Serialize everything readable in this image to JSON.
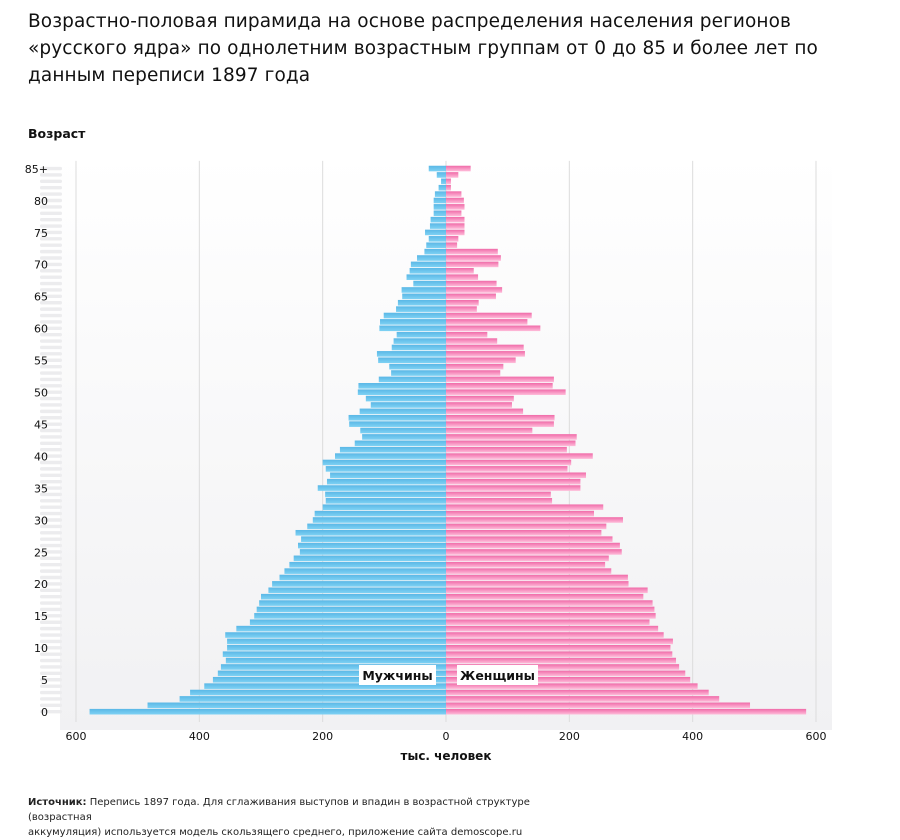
{
  "title_lines": [
    "Возрастно-половая пирамида на основе распределения населения регионов",
    "«русского ядра» по однолетним возрастным группам от 0 до 85 и более лет по",
    "данным переписи 1897 года"
  ],
  "source": {
    "label": "Источник:",
    "lines": [
      "Перепись 1897 года. Для сглаживания выступов и впадин в возрастной структуре (возрастная",
      "аккумуляция) используется модель скользящего среднего, приложение сайта demoscope.ru"
    ]
  },
  "chart_data": {
    "type": "bar",
    "orientation": "horizontal-pyramid",
    "ylabel": "Возраст",
    "xlabel": "тыс. человек",
    "xlim": [
      -600,
      600
    ],
    "x_ticks": [
      -600,
      -400,
      -200,
      0,
      200,
      400,
      600
    ],
    "x_tick_labels": [
      "600",
      "400",
      "200",
      "0",
      "200",
      "400",
      "600"
    ],
    "y_tick_ages": [
      0,
      5,
      10,
      15,
      20,
      25,
      30,
      35,
      40,
      45,
      50,
      55,
      60,
      65,
      70,
      75,
      80,
      85
    ],
    "y_tick_labels": [
      "0",
      "5",
      "10",
      "15",
      "20",
      "25",
      "30",
      "35",
      "40",
      "45",
      "50",
      "55",
      "60",
      "65",
      "70",
      "75",
      "80",
      "85+"
    ],
    "grid": true,
    "categories": [
      "0",
      "1",
      "2",
      "3",
      "4",
      "5",
      "6",
      "7",
      "8",
      "9",
      "10",
      "11",
      "12",
      "13",
      "14",
      "15",
      "16",
      "17",
      "18",
      "19",
      "20",
      "21",
      "22",
      "23",
      "24",
      "25",
      "26",
      "27",
      "28",
      "29",
      "30",
      "31",
      "32",
      "33",
      "34",
      "35",
      "36",
      "37",
      "38",
      "39",
      "40",
      "41",
      "42",
      "43",
      "44",
      "45",
      "46",
      "47",
      "48",
      "49",
      "50",
      "51",
      "52",
      "53",
      "54",
      "55",
      "56",
      "57",
      "58",
      "59",
      "60",
      "61",
      "62",
      "63",
      "64",
      "65",
      "66",
      "67",
      "68",
      "69",
      "70",
      "71",
      "72",
      "73",
      "74",
      "75",
      "76",
      "77",
      "78",
      "79",
      "80",
      "81",
      "82",
      "83",
      "84",
      "85+"
    ],
    "series": [
      {
        "name": "Мужчины",
        "color_light": "#7fd2f4",
        "color_dark": "#5ab7e6",
        "values": [
          578,
          484,
          432,
          415,
          392,
          378,
          370,
          365,
          357,
          362,
          355,
          355,
          358,
          340,
          318,
          311,
          307,
          303,
          300,
          288,
          282,
          270,
          262,
          254,
          247,
          237,
          240,
          235,
          244,
          225,
          216,
          213,
          200,
          195,
          196,
          208,
          193,
          188,
          195,
          200,
          180,
          172,
          148,
          136,
          139,
          157,
          158,
          140,
          122,
          130,
          143,
          142,
          109,
          89,
          92,
          110,
          112,
          88,
          85,
          80,
          108,
          107,
          101,
          81,
          78,
          71,
          72,
          53,
          64,
          59,
          57,
          47,
          35,
          32,
          28,
          34,
          26,
          25,
          20,
          20,
          20,
          18,
          12,
          8,
          15,
          28
        ],
        "value_unit": "тыс. человек"
      },
      {
        "name": "Женщины",
        "color_light": "#ffbdda",
        "color_dark": "#f06aa8",
        "values": [
          584,
          493,
          443,
          426,
          408,
          396,
          388,
          378,
          373,
          367,
          364,
          368,
          353,
          344,
          330,
          340,
          338,
          335,
          320,
          327,
          296,
          295,
          268,
          258,
          264,
          285,
          282,
          270,
          252,
          260,
          287,
          240,
          255,
          172,
          170,
          218,
          218,
          227,
          197,
          203,
          238,
          196,
          210,
          212,
          140,
          175,
          176,
          125,
          107,
          110,
          194,
          173,
          175,
          88,
          93,
          113,
          128,
          126,
          83,
          67,
          153,
          132,
          139,
          50,
          53,
          81,
          91,
          82,
          52,
          45,
          85,
          89,
          84,
          18,
          20,
          30,
          30,
          30,
          25,
          30,
          29,
          25,
          8,
          8,
          20,
          40
        ],
        "value_unit": "тыс. человек"
      }
    ],
    "annotations": [
      "Мужчины",
      "Женщины"
    ]
  }
}
